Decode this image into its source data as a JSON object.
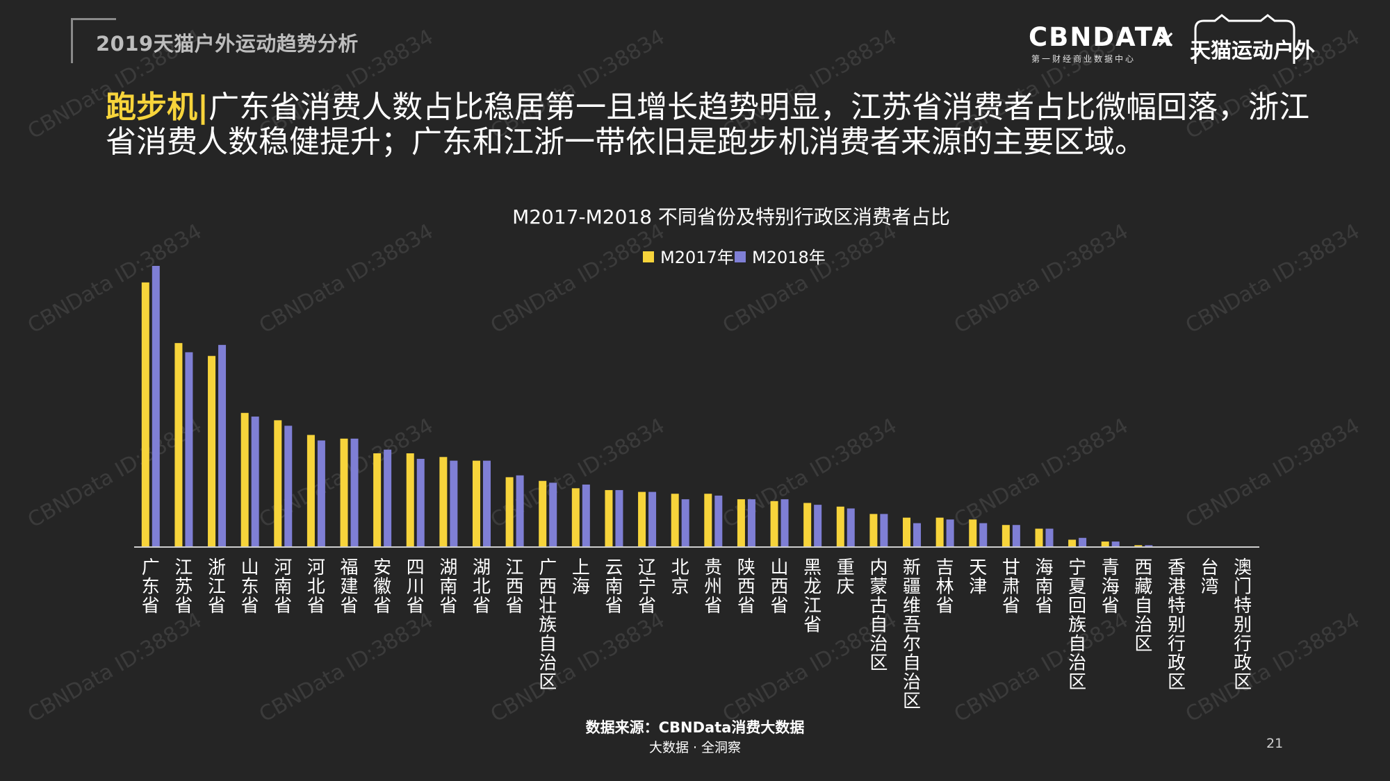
{
  "header": {
    "report_title": "2019天猫户外运动趋势分析",
    "logo_primary": "CBNDATA",
    "logo_primary_sub": "第一财经商业数据中心",
    "logo_separator": "×",
    "logo_partner": "天猫运动户外"
  },
  "headline": {
    "keyword": "跑步机|",
    "text": "广东省消费人数占比稳居第一且增长趋势明显，江苏省消费者占比微幅回落，浙江省消费人数稳健提升；广东和江浙一带依旧是跑步机消费者来源的主要区域。"
  },
  "watermark": "CBNData ID:38834",
  "chart_data": {
    "type": "bar",
    "title": "M2017-M2018 不同省份及特别行政区消费者占比",
    "legend_position": "top-center",
    "grid": false,
    "y_axis_visible": false,
    "colors": [
      "#f7d43b",
      "#7f7fd5"
    ],
    "categories": [
      "广东省",
      "江苏省",
      "浙江省",
      "山东省",
      "河南省",
      "河北省",
      "福建省",
      "安徽省",
      "四川省",
      "湖南省",
      "湖北省",
      "江西省",
      "广西壮族自治区",
      "上海",
      "云南省",
      "辽宁省",
      "北京",
      "贵州省",
      "陕西省",
      "山西省",
      "黑龙江省",
      "重庆",
      "内蒙古自治区",
      "新疆维吾尔自治区",
      "吉林省",
      "天津",
      "甘肃省",
      "海南省",
      "宁夏回族自治区",
      "青海省",
      "西藏自治区",
      "香港特别行政区",
      "台湾",
      "澳门特别行政区"
    ],
    "series": [
      {
        "name": "M2017年",
        "values": [
          14.4,
          11.1,
          10.4,
          7.3,
          6.9,
          6.1,
          5.9,
          5.1,
          5.1,
          4.9,
          4.7,
          3.8,
          3.6,
          3.2,
          3.1,
          3.0,
          2.9,
          2.9,
          2.6,
          2.5,
          2.4,
          2.2,
          1.8,
          1.6,
          1.6,
          1.5,
          1.2,
          1.0,
          0.4,
          0.3,
          0.1,
          0.0,
          0.0,
          0.0
        ]
      },
      {
        "name": "M2018年",
        "values": [
          15.3,
          10.6,
          11.0,
          7.1,
          6.6,
          5.8,
          5.9,
          5.3,
          4.8,
          4.7,
          4.7,
          3.9,
          3.5,
          3.4,
          3.1,
          3.0,
          2.6,
          2.8,
          2.6,
          2.6,
          2.3,
          2.1,
          1.8,
          1.3,
          1.5,
          1.3,
          1.2,
          1.0,
          0.5,
          0.3,
          0.1,
          0.0,
          0.0,
          0.0
        ]
      }
    ]
  },
  "footer": {
    "source": "数据来源：CBNData消费大数据",
    "slogan": "大数据 · 全洞察",
    "page_number": "21"
  }
}
